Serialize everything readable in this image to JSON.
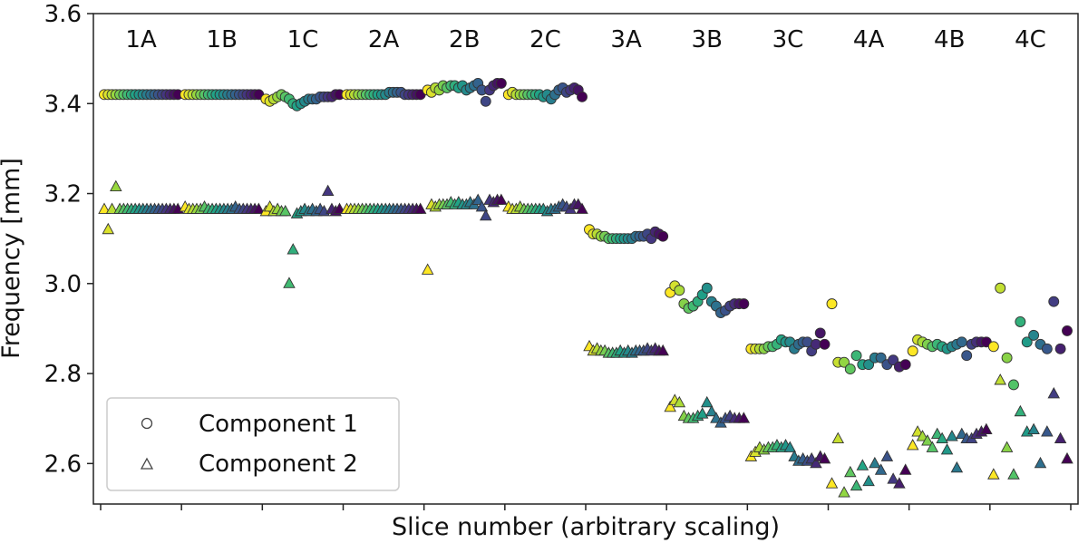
{
  "chart_data": {
    "type": "scatter",
    "title": "",
    "xlabel": "Slice number (arbitrary scaling)",
    "ylabel": "Frequency [mm]",
    "ylim": [
      2.51,
      3.6
    ],
    "yticks": [
      "2.6",
      "2.8",
      "3.0",
      "3.2",
      "3.4",
      "3.6"
    ],
    "grid": false,
    "legend": {
      "placement": "bottom-left",
      "entries": [
        {
          "name": "Component 1",
          "marker": "circle"
        },
        {
          "name": "Component 2",
          "marker": "triangle"
        }
      ]
    },
    "colormap": [
      "#fde725",
      "#a0da39",
      "#4ac16d",
      "#1fa187",
      "#277f8e",
      "#365c8d",
      "#46327e",
      "#440154"
    ],
    "groups": [
      {
        "label": "1A",
        "component1": [
          3.42,
          3.42,
          3.42,
          3.42,
          3.42,
          3.42,
          3.42,
          3.42,
          3.42,
          3.42,
          3.42,
          3.42,
          3.42,
          3.42,
          3.42,
          3.42,
          3.42,
          3.42,
          3.42,
          3.42
        ],
        "component2": [
          3.165,
          3.12,
          3.165,
          3.215,
          3.165,
          3.165,
          3.165,
          3.165,
          3.165,
          3.165,
          3.165,
          3.165,
          3.165,
          3.165,
          3.165,
          3.165,
          3.165,
          3.165,
          3.165,
          3.165
        ]
      },
      {
        "label": "1B",
        "component1": [
          3.42,
          3.42,
          3.42,
          3.42,
          3.42,
          3.42,
          3.42,
          3.42,
          3.42,
          3.42,
          3.42,
          3.42,
          3.42,
          3.42,
          3.42,
          3.42,
          3.42,
          3.42,
          3.42,
          3.42
        ],
        "component2": [
          3.17,
          3.165,
          3.165,
          3.165,
          3.165,
          3.17,
          3.165,
          3.165,
          3.165,
          3.165,
          3.165,
          3.165,
          3.165,
          3.17,
          3.165,
          3.165,
          3.165,
          3.165,
          3.165,
          3.165
        ]
      },
      {
        "label": "1C",
        "component1": [
          3.41,
          3.405,
          3.41,
          3.415,
          3.42,
          3.415,
          3.41,
          3.4,
          3.395,
          3.4,
          3.405,
          3.41,
          3.41,
          3.41,
          3.415,
          3.415,
          3.415,
          3.415,
          3.42,
          3.42
        ],
        "component2": [
          3.16,
          3.17,
          3.16,
          3.165,
          3.16,
          3.16,
          3.0,
          3.075,
          3.155,
          3.16,
          3.165,
          3.16,
          3.165,
          3.16,
          3.165,
          3.16,
          3.205,
          3.165,
          3.16,
          3.165
        ]
      },
      {
        "label": "2A",
        "component1": [
          3.42,
          3.42,
          3.42,
          3.42,
          3.42,
          3.42,
          3.42,
          3.42,
          3.42,
          3.42,
          3.42,
          3.425,
          3.425,
          3.425,
          3.425,
          3.42,
          3.42,
          3.42,
          3.42,
          3.42
        ],
        "component2": [
          3.165,
          3.165,
          3.165,
          3.165,
          3.165,
          3.165,
          3.165,
          3.165,
          3.165,
          3.165,
          3.165,
          3.165,
          3.165,
          3.165,
          3.165,
          3.165,
          3.165,
          3.165,
          3.165,
          3.165
        ]
      },
      {
        "label": "2B",
        "component1": [
          3.43,
          3.425,
          3.435,
          3.43,
          3.44,
          3.435,
          3.44,
          3.44,
          3.435,
          3.44,
          3.43,
          3.435,
          3.44,
          3.445,
          3.43,
          3.405,
          3.43,
          3.44,
          3.445,
          3.445
        ],
        "component2": [
          3.03,
          3.175,
          3.17,
          3.175,
          3.175,
          3.175,
          3.18,
          3.175,
          3.18,
          3.175,
          3.175,
          3.18,
          3.175,
          3.185,
          3.17,
          3.15,
          3.185,
          3.18,
          3.185,
          3.185
        ]
      },
      {
        "label": "2C",
        "component1": [
          3.42,
          3.425,
          3.42,
          3.42,
          3.42,
          3.42,
          3.42,
          3.42,
          3.42,
          3.415,
          3.42,
          3.41,
          3.42,
          3.43,
          3.435,
          3.425,
          3.43,
          3.435,
          3.43,
          3.415
        ],
        "component2": [
          3.17,
          3.165,
          3.165,
          3.17,
          3.165,
          3.165,
          3.165,
          3.165,
          3.165,
          3.165,
          3.16,
          3.165,
          3.165,
          3.17,
          3.175,
          3.17,
          3.165,
          3.175,
          3.175,
          3.165
        ]
      },
      {
        "label": "3A",
        "component1": [
          3.12,
          3.11,
          3.11,
          3.105,
          3.105,
          3.1,
          3.1,
          3.1,
          3.1,
          3.1,
          3.1,
          3.1,
          3.105,
          3.105,
          3.105,
          3.11,
          3.1,
          3.115,
          3.11,
          3.105
        ],
        "component2": [
          2.86,
          2.85,
          2.855,
          2.85,
          2.85,
          2.845,
          2.845,
          2.845,
          2.85,
          2.845,
          2.85,
          2.845,
          2.85,
          2.85,
          2.85,
          2.855,
          2.85,
          2.855,
          2.85,
          2.85
        ]
      },
      {
        "label": "3B",
        "component1": [
          2.98,
          2.995,
          2.985,
          2.955,
          2.945,
          2.95,
          2.96,
          2.975,
          2.99,
          2.96,
          2.95,
          2.935,
          2.94,
          2.95,
          2.955,
          2.955,
          2.955
        ],
        "component2": [
          2.725,
          2.74,
          2.735,
          2.705,
          2.7,
          2.7,
          2.705,
          2.71,
          2.735,
          2.715,
          2.7,
          2.69,
          2.7,
          2.705,
          2.7,
          2.7,
          2.7
        ]
      },
      {
        "label": "3C",
        "component1": [
          2.855,
          2.855,
          2.855,
          2.855,
          2.86,
          2.86,
          2.865,
          2.875,
          2.87,
          2.87,
          2.855,
          2.865,
          2.87,
          2.87,
          2.85,
          2.865,
          2.89,
          2.865
        ],
        "component2": [
          2.615,
          2.625,
          2.635,
          2.63,
          2.635,
          2.635,
          2.64,
          2.635,
          2.64,
          2.635,
          2.615,
          2.605,
          2.61,
          2.605,
          2.61,
          2.6,
          2.615,
          2.61
        ]
      },
      {
        "label": "4A",
        "component1": [
          2.955,
          2.825,
          2.825,
          2.81,
          2.84,
          2.82,
          2.82,
          2.835,
          2.835,
          2.82,
          2.83,
          2.815,
          2.82
        ],
        "component2": [
          2.555,
          2.655,
          2.535,
          2.58,
          2.55,
          2.595,
          2.56,
          2.6,
          2.585,
          2.615,
          2.565,
          2.555,
          2.585
        ]
      },
      {
        "label": "4B",
        "component1": [
          2.85,
          2.875,
          2.87,
          2.865,
          2.86,
          2.865,
          2.86,
          2.855,
          2.86,
          2.865,
          2.87,
          2.84,
          2.865,
          2.87,
          2.87,
          2.87
        ],
        "component2": [
          2.64,
          2.67,
          2.66,
          2.65,
          2.635,
          2.665,
          2.655,
          2.63,
          2.66,
          2.59,
          2.665,
          2.655,
          2.655,
          2.665,
          2.67,
          2.675
        ]
      },
      {
        "label": "4C",
        "component1": [
          2.86,
          2.99,
          2.835,
          2.775,
          2.915,
          2.87,
          2.885,
          2.865,
          2.855,
          2.96,
          2.855,
          2.895
        ],
        "component2": [
          2.575,
          2.785,
          2.635,
          2.575,
          2.715,
          2.67,
          2.675,
          2.6,
          2.67,
          2.755,
          2.655,
          2.61
        ]
      }
    ]
  }
}
